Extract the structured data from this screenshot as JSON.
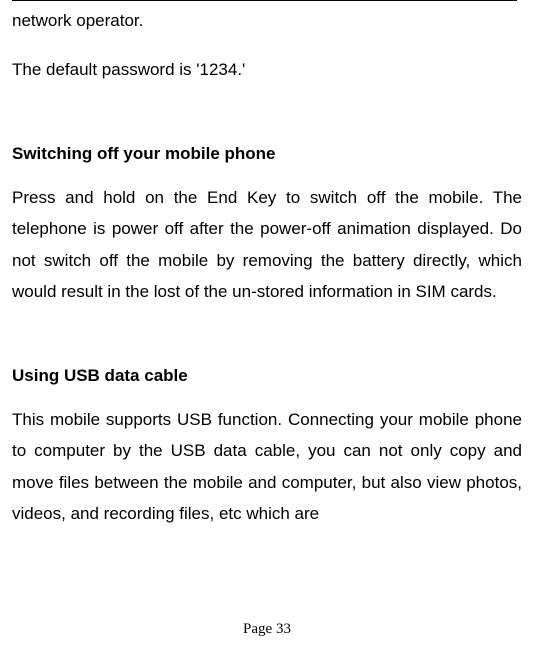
{
  "document": {
    "topLine1": "network operator.",
    "topLine2": "The default password is '1234.'",
    "section1": {
      "heading": "Switching off your mobile phone",
      "body": "Press and hold on the End Key to switch off the mobile. The telephone is power off after the power-off animation displayed. Do not switch off the mobile by removing the battery directly, which would result in the lost of the un-stored information in SIM cards."
    },
    "section2": {
      "heading": "Using USB data cable",
      "body": "This mobile supports USB function. Connecting your mobile phone to computer by the USB data cable, you can not only copy and move files between the mobile and computer, but also view photos, videos, and recording files, etc which are"
    },
    "pageNumber": "Page 33"
  },
  "style": {
    "pageWidth": 534,
    "pageHeight": 650,
    "background": "#ffffff",
    "textColor": "#000000",
    "bodyFontSize": 17,
    "bodyLineHeight": 1.85,
    "headingFontSize": 17,
    "headingFontWeight": "bold",
    "pageNumberFontSize": 15,
    "pageNumberFontFamily": "Times New Roman, serif",
    "hrWidth": 505,
    "hrColor": "#000000"
  }
}
